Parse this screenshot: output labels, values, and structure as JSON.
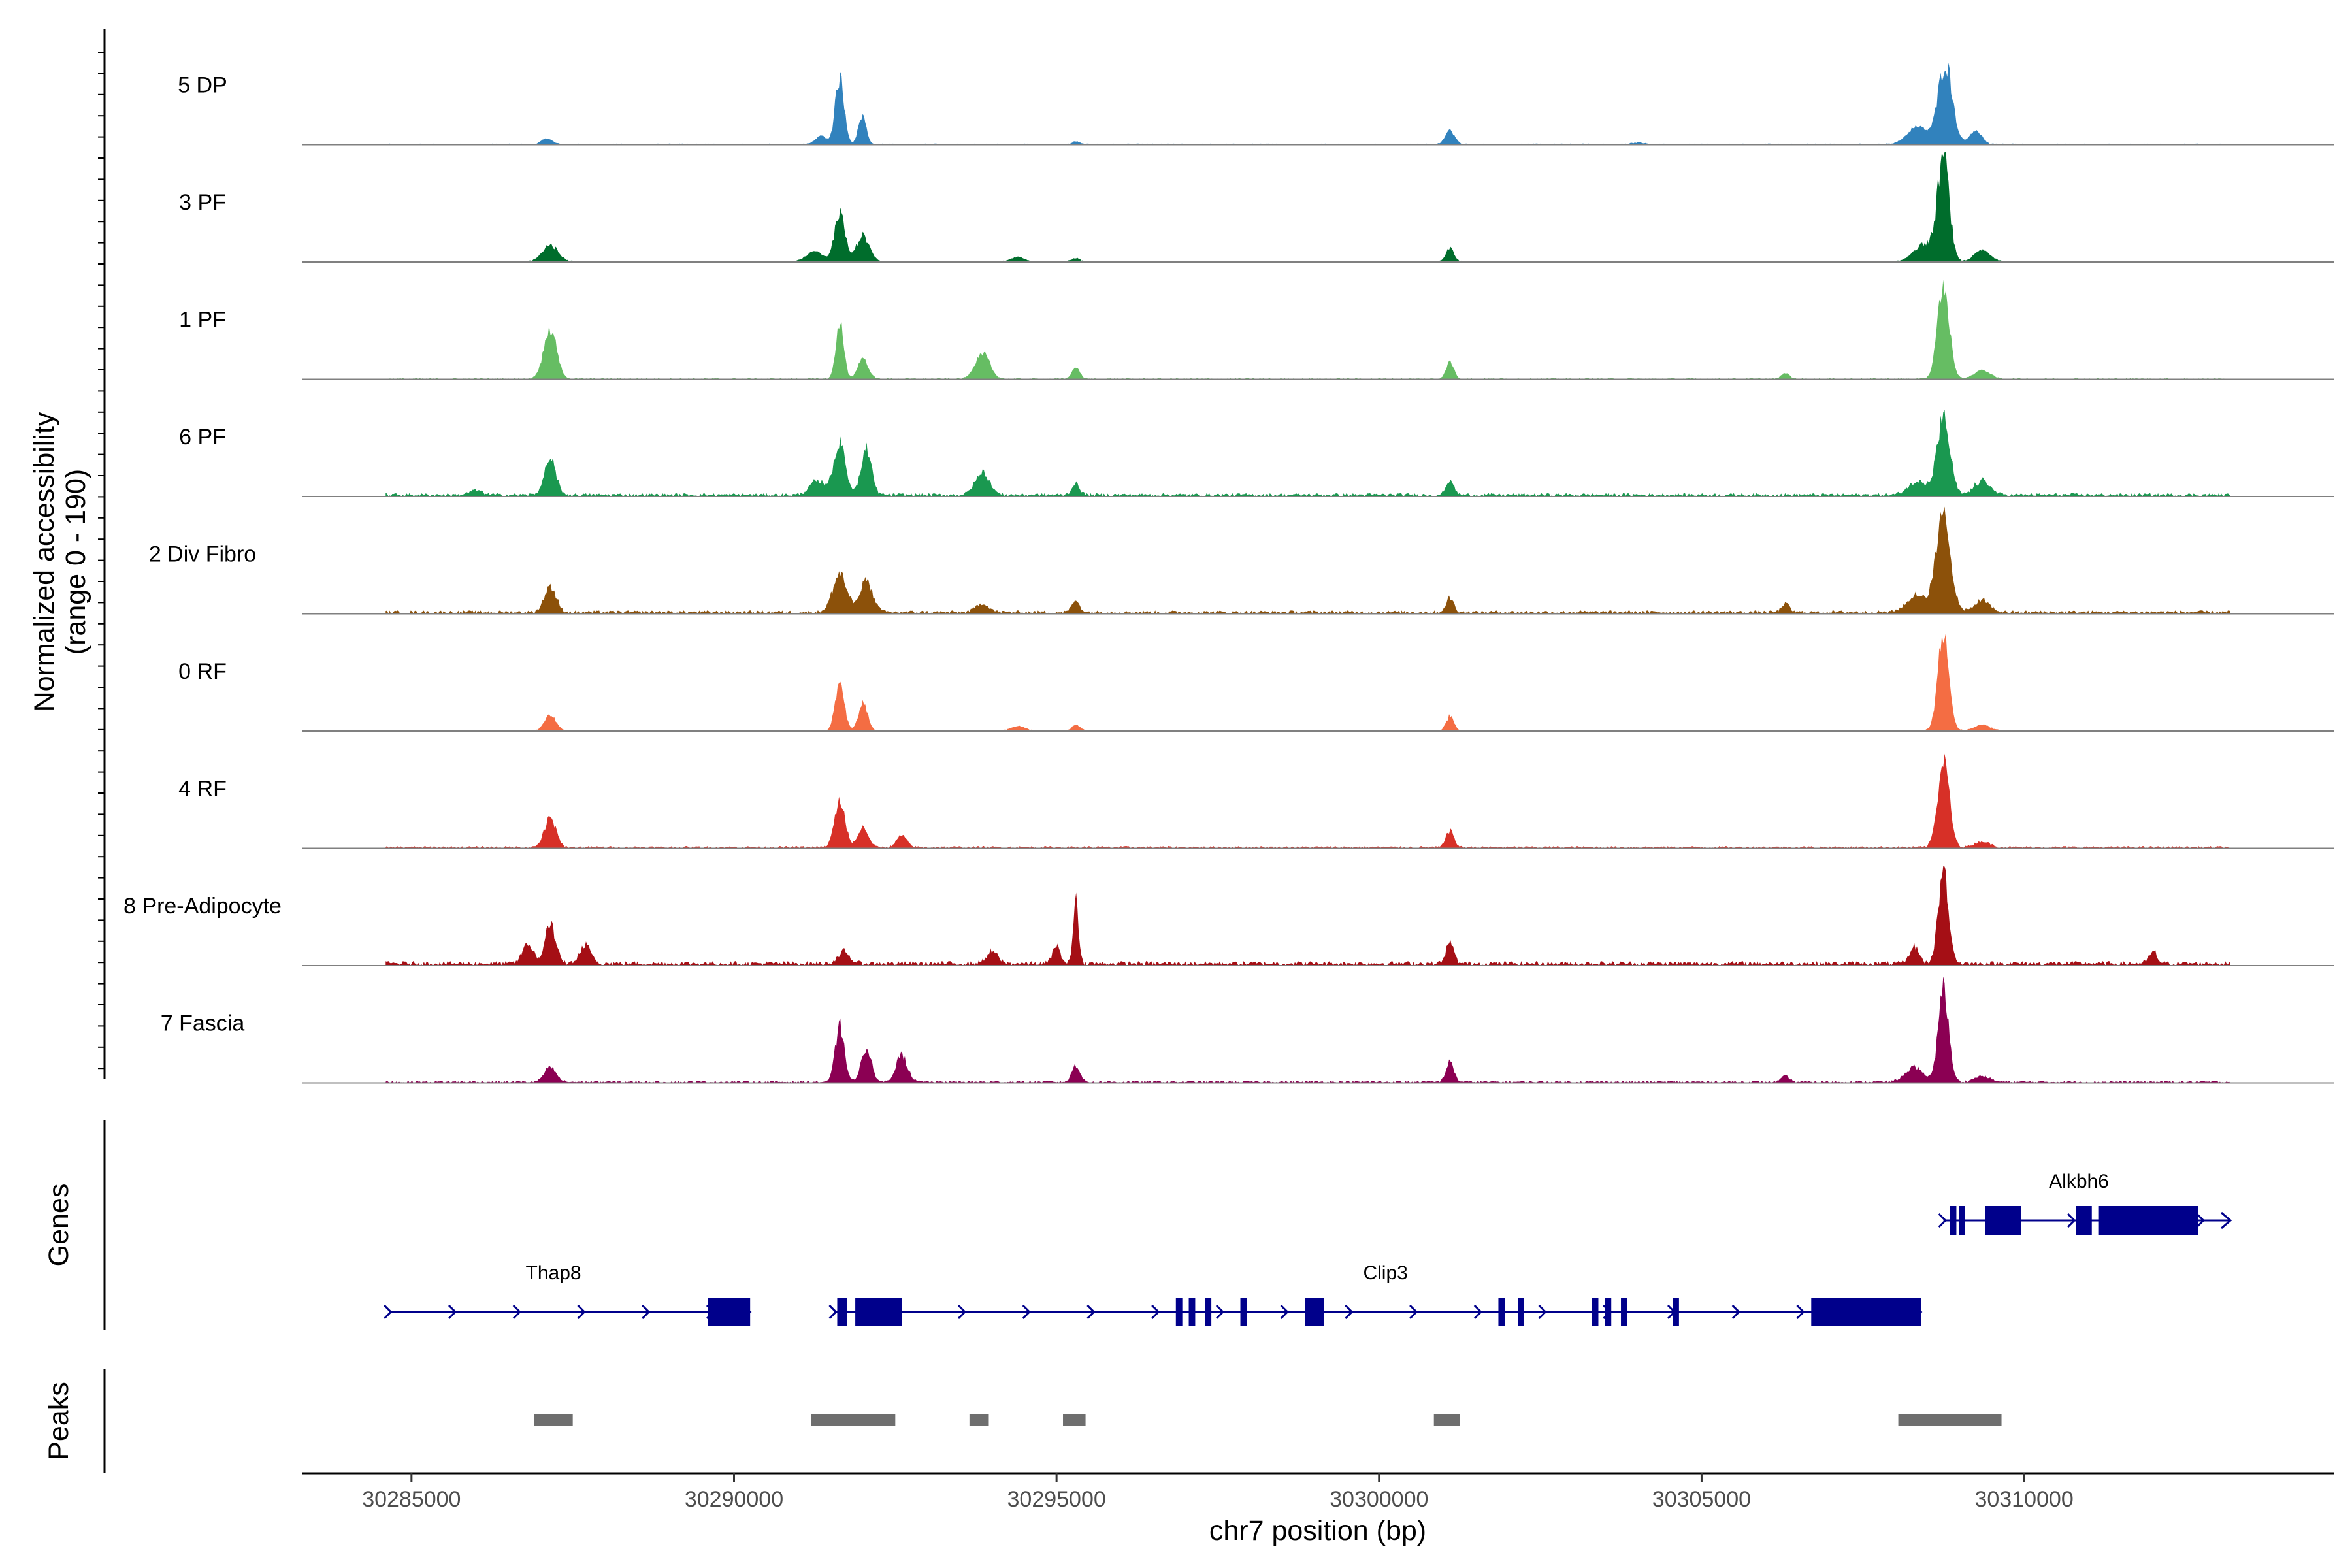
{
  "chart_data": {
    "type": "area",
    "title": "",
    "chromosome": "chr7",
    "xlabel": "chr7 position (bp)",
    "ylabel_line1": "Normalized accessibility",
    "ylabel_line2": "(range 0 - 190)",
    "y_range": [
      0,
      190
    ],
    "xlim": [
      30283300,
      30314800
    ],
    "x_ticks": [
      30285000,
      30290000,
      30295000,
      30300000,
      30305000,
      30310000
    ],
    "x_tick_labels": [
      "30285000",
      "30290000",
      "30295000",
      "30300000",
      "30305000",
      "30310000"
    ],
    "panels": {
      "genes": "Genes",
      "peaks": "Peaks"
    },
    "tracks": [
      {
        "name": "5 DP",
        "color": "#3182BD",
        "baseline_noise": 1,
        "peaks": [
          [
            30291640,
            115,
            70
          ],
          [
            30291990,
            50,
            60
          ],
          [
            30291350,
            15,
            80
          ],
          [
            30308780,
            140,
            110
          ],
          [
            30308350,
            30,
            160
          ],
          [
            30309250,
            25,
            90
          ],
          [
            30301100,
            25,
            70
          ],
          [
            30287100,
            10,
            80
          ],
          [
            30295300,
            5,
            50
          ],
          [
            30304000,
            3,
            100
          ]
        ]
      },
      {
        "name": "3 PF",
        "color": "#006D2C",
        "baseline_noise": 1,
        "peaks": [
          [
            30291640,
            85,
            80
          ],
          [
            30292000,
            45,
            100
          ],
          [
            30291250,
            18,
            120
          ],
          [
            30308750,
            180,
            90
          ],
          [
            30308450,
            30,
            160
          ],
          [
            30309350,
            20,
            120
          ],
          [
            30287150,
            28,
            120
          ],
          [
            30301100,
            24,
            60
          ],
          [
            30294400,
            8,
            100
          ],
          [
            30295300,
            6,
            60
          ]
        ]
      },
      {
        "name": "1 PF",
        "color": "#66BD63",
        "baseline_noise": 1,
        "peaks": [
          [
            30291640,
            100,
            60
          ],
          [
            30292000,
            35,
            80
          ],
          [
            30287150,
            85,
            100
          ],
          [
            30293850,
            45,
            110
          ],
          [
            30295300,
            20,
            60
          ],
          [
            30301100,
            30,
            60
          ],
          [
            30308750,
            165,
            90
          ],
          [
            30309350,
            15,
            120
          ],
          [
            30306300,
            10,
            60
          ]
        ]
      },
      {
        "name": "6 PF",
        "color": "#1A9850",
        "baseline_noise": 3,
        "peaks": [
          [
            30291640,
            90,
            90
          ],
          [
            30292050,
            80,
            80
          ],
          [
            30291300,
            25,
            120
          ],
          [
            30287150,
            60,
            90
          ],
          [
            30293850,
            40,
            110
          ],
          [
            30295300,
            20,
            60
          ],
          [
            30301100,
            25,
            60
          ],
          [
            30308750,
            130,
            100
          ],
          [
            30308350,
            25,
            140
          ],
          [
            30309350,
            25,
            120
          ],
          [
            30286000,
            8,
            100
          ]
        ]
      },
      {
        "name": "2 Div Fibro",
        "color": "#8C510A",
        "baseline_noise": 3,
        "peaks": [
          [
            30291640,
            65,
            110
          ],
          [
            30292050,
            55,
            100
          ],
          [
            30287150,
            45,
            90
          ],
          [
            30293850,
            15,
            100
          ],
          [
            30295300,
            20,
            60
          ],
          [
            30301100,
            25,
            60
          ],
          [
            30306300,
            15,
            60
          ],
          [
            30308750,
            165,
            110
          ],
          [
            30308350,
            30,
            160
          ],
          [
            30309350,
            20,
            120
          ]
        ]
      },
      {
        "name": "0 RF",
        "color": "#F46D43",
        "baseline_noise": 1,
        "peaks": [
          [
            30291640,
            85,
            70
          ],
          [
            30292000,
            50,
            70
          ],
          [
            30287150,
            25,
            90
          ],
          [
            30295300,
            10,
            60
          ],
          [
            30301100,
            25,
            60
          ],
          [
            30294400,
            8,
            100
          ],
          [
            30308750,
            170,
            85
          ],
          [
            30309350,
            10,
            120
          ]
        ]
      },
      {
        "name": "4 RF",
        "color": "#D73027",
        "baseline_noise": 2,
        "peaks": [
          [
            30291640,
            80,
            80
          ],
          [
            30292000,
            35,
            80
          ],
          [
            30287150,
            50,
            90
          ],
          [
            30292600,
            20,
            80
          ],
          [
            30301100,
            30,
            60
          ],
          [
            30308750,
            150,
            90
          ],
          [
            30309350,
            10,
            120
          ]
        ]
      },
      {
        "name": "8 Pre-Adipocyte",
        "color": "#A50F15",
        "baseline_noise": 4,
        "peaks": [
          [
            30295300,
            115,
            40
          ],
          [
            30287150,
            70,
            80
          ],
          [
            30286800,
            35,
            80
          ],
          [
            30287700,
            30,
            90
          ],
          [
            30294000,
            20,
            90
          ],
          [
            30295000,
            30,
            60
          ],
          [
            30301100,
            35,
            60
          ],
          [
            30308750,
            160,
            80
          ],
          [
            30308300,
            30,
            70
          ],
          [
            30312000,
            20,
            60
          ],
          [
            30291700,
            20,
            90
          ]
        ]
      },
      {
        "name": "7 Fascia",
        "color": "#8B0053",
        "baseline_noise": 2,
        "peaks": [
          [
            30291640,
            95,
            70
          ],
          [
            30292050,
            55,
            80
          ],
          [
            30292600,
            45,
            90
          ],
          [
            30287150,
            25,
            90
          ],
          [
            30295300,
            30,
            60
          ],
          [
            30301100,
            35,
            60
          ],
          [
            30308750,
            160,
            80
          ],
          [
            30308300,
            25,
            140
          ],
          [
            30309350,
            10,
            120
          ],
          [
            30306300,
            10,
            60
          ]
        ]
      }
    ],
    "genes": [
      {
        "name": "Thap8",
        "strand": "+",
        "start": 30284650,
        "end": 30290250,
        "label_x": 30287200,
        "row": 1,
        "exons": [
          [
            30289600,
            30290250
          ]
        ]
      },
      {
        "name": "Clip3",
        "strand": "+",
        "start": 30291550,
        "end": 30308400,
        "label_x": 30300100,
        "row": 1,
        "exons": [
          [
            30291600,
            30291750
          ],
          [
            30291880,
            30292600
          ],
          [
            30296850,
            30296950
          ],
          [
            30297050,
            30297150
          ],
          [
            30297300,
            30297400
          ],
          [
            30297850,
            30297950
          ],
          [
            30298850,
            30299150
          ],
          [
            30301850,
            30301950
          ],
          [
            30302150,
            30302250
          ],
          [
            30303300,
            30303400
          ],
          [
            30303500,
            30303600
          ],
          [
            30303750,
            30303850
          ],
          [
            30304550,
            30304650
          ],
          [
            30306700,
            30308400
          ]
        ]
      },
      {
        "name": "Alkbh6",
        "strand": "+",
        "start": 30308750,
        "end": 30313200,
        "label_x": 30310850,
        "row": 0,
        "exons": [
          [
            30308850,
            30308950
          ],
          [
            30308990,
            30309080
          ],
          [
            30309400,
            30309950
          ],
          [
            30310800,
            30311050
          ],
          [
            30311150,
            30312700
          ]
        ]
      }
    ],
    "peak_regions": [
      [
        30286900,
        30287500
      ],
      [
        30291200,
        30292500
      ],
      [
        30293650,
        30293950
      ],
      [
        30295100,
        30295450
      ],
      [
        30300850,
        30301250
      ],
      [
        30308050,
        30309650
      ]
    ]
  }
}
